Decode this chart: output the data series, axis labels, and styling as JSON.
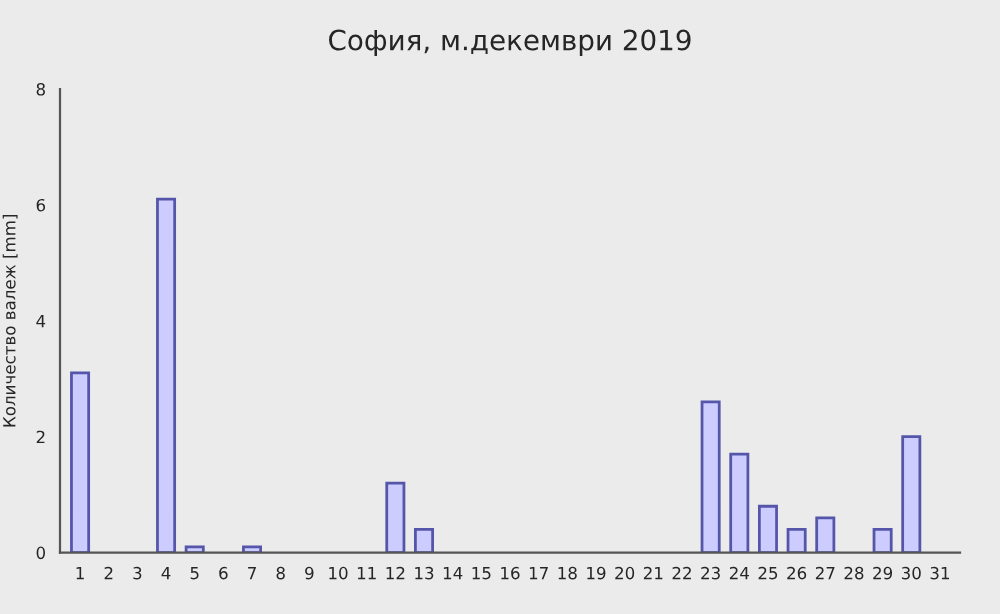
{
  "chart_data": {
    "type": "bar",
    "title": "София, м.декември 2019",
    "ylabel": "Количество валеж [mm]",
    "categories": [
      "1",
      "2",
      "3",
      "4",
      "5",
      "6",
      "7",
      "8",
      "9",
      "10",
      "11",
      "12",
      "13",
      "14",
      "15",
      "16",
      "17",
      "18",
      "19",
      "20",
      "21",
      "22",
      "23",
      "24",
      "25",
      "26",
      "27",
      "28",
      "29",
      "30",
      "31"
    ],
    "values": [
      3.1,
      0,
      0,
      6.1,
      0.1,
      0,
      0.1,
      0,
      0,
      0,
      0,
      1.2,
      0.4,
      0,
      0,
      0,
      0,
      0,
      0,
      0,
      0,
      0,
      2.6,
      1.7,
      0.8,
      0.4,
      0.6,
      0,
      0.4,
      2.0,
      0
    ],
    "color": "#ccccff",
    "ylim": [
      0,
      8
    ],
    "yticks": [
      0,
      2,
      4,
      6,
      8
    ],
    "grid": false
  }
}
